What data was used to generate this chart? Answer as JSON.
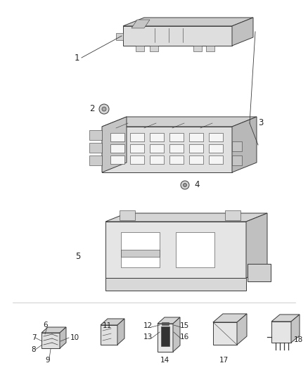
{
  "background_color": "#ffffff",
  "line_color": "#3a3a3a",
  "text_color": "#222222",
  "figsize": [
    4.38,
    5.33
  ],
  "dpi": 100,
  "lw_main": 0.7,
  "lw_detail": 0.4,
  "gray_face": "#e8e8e8",
  "gray_side": "#d0d0d0",
  "gray_top": "#c8c8c8",
  "gray_dark": "#aaaaaa",
  "white": "#ffffff"
}
